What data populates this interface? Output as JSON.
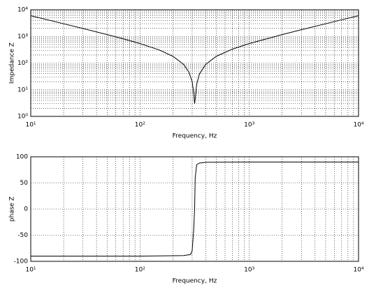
{
  "chart_data": [
    {
      "type": "line",
      "xlabel": "Frequency, Hz",
      "ylabel": "Impedance Z",
      "xscale": "log",
      "yscale": "log",
      "grid": true,
      "minor_grid": true,
      "color": "#000000",
      "xlim": [
        10,
        10000
      ],
      "ylim": [
        1,
        10000
      ],
      "xticks": [
        {
          "value": 10,
          "label": "10¹"
        },
        {
          "value": 100,
          "label": "10²"
        },
        {
          "value": 1000,
          "label": "10³"
        },
        {
          "value": 10000,
          "label": "10⁴"
        }
      ],
      "yticks": [
        {
          "value": 1,
          "label": "10⁰"
        },
        {
          "value": 10,
          "label": "10¹"
        },
        {
          "value": 100,
          "label": "10²"
        },
        {
          "value": 1000,
          "label": "10³"
        },
        {
          "value": 10000,
          "label": "10⁴"
        }
      ],
      "x": [
        10,
        20,
        30,
        50,
        70,
        100,
        150,
        200,
        250,
        280,
        300,
        310,
        316,
        320,
        330,
        350,
        400,
        500,
        700,
        1000,
        2000,
        3000,
        5000,
        7000,
        10000
      ],
      "values": [
        6000,
        2990,
        1980,
        1170,
        815,
        540,
        310,
        180,
        90,
        46,
        20,
        7.5,
        3,
        4.5,
        16,
        39,
        90,
        180,
        334,
        540,
        1170,
        1780,
        2990,
        4190,
        6000
      ]
    },
    {
      "type": "line",
      "xlabel": "Frequency, Hz",
      "ylabel": "phase Z",
      "xscale": "log",
      "yscale": "linear",
      "grid": true,
      "minor_grid": true,
      "color": "#000000",
      "xlim": [
        10,
        10000
      ],
      "ylim": [
        -100,
        100
      ],
      "xticks": [
        {
          "value": 10,
          "label": "10¹"
        },
        {
          "value": 100,
          "label": "10²"
        },
        {
          "value": 1000,
          "label": "10³"
        },
        {
          "value": 10000,
          "label": "10⁴"
        }
      ],
      "yticks": [
        -100,
        -50,
        0,
        50,
        100
      ],
      "x": [
        10,
        100,
        250,
        290,
        300,
        310,
        316,
        320,
        330,
        350,
        400,
        1000,
        10000
      ],
      "values": [
        -90,
        -90,
        -89,
        -87,
        -80,
        -40,
        0,
        60,
        85,
        88,
        89.5,
        90,
        90
      ]
    }
  ]
}
